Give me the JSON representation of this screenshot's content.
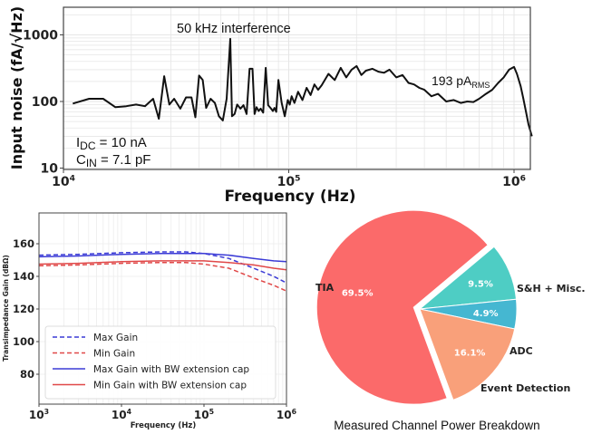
{
  "chart_data": [
    {
      "type": "line",
      "name": "input-noise",
      "xlabel": "Frequency (Hz)",
      "ylabel": "Input noise (fA/√Hz)",
      "xscale": "log",
      "yscale": "log",
      "xlim": [
        10000,
        1200000
      ],
      "ylim": [
        10,
        3000
      ],
      "xticks": [
        {
          "v": 10000,
          "base": "10",
          "exp": "4"
        },
        {
          "v": 100000,
          "base": "10",
          "exp": "5"
        },
        {
          "v": 1000000,
          "base": "10",
          "exp": "6"
        }
      ],
      "yticks": [
        {
          "v": 10,
          "label": "10"
        },
        {
          "v": 100,
          "label": "100"
        },
        {
          "v": 1000,
          "label": "1000"
        }
      ],
      "grid": true,
      "annotations": {
        "interference": "50 kHz interference",
        "rms_value": "193 pA",
        "rms_sub": "RMS",
        "idc_main": "I",
        "idc_sub": "DC",
        "idc_rest": " = 10 nA",
        "cin_main": "C",
        "cin_sub": "IN",
        "cin_rest": " = 7.1 pF"
      },
      "series": [
        {
          "name": "noise",
          "x": [
            11000,
            13000,
            15000,
            17000,
            19000,
            21000,
            23000,
            25000,
            26500,
            28000,
            29500,
            31000,
            33000,
            35000,
            37000,
            38500,
            40000,
            41500,
            43000,
            45000,
            47000,
            49000,
            51000,
            53000,
            55000,
            56000,
            57500,
            59000,
            61000,
            63000,
            65000,
            67000,
            69000,
            70500,
            72000,
            73500,
            75000,
            77000,
            79000,
            81000,
            83000,
            85000,
            86500,
            88000,
            90000,
            93000,
            96000,
            99000,
            101000,
            103000,
            106000,
            110000,
            115000,
            120000,
            125000,
            130000,
            135000,
            140000,
            150000,
            160000,
            170000,
            180000,
            190000,
            200000,
            210000,
            220000,
            235000,
            250000,
            265000,
            280000,
            300000,
            320000,
            340000,
            360000,
            380000,
            400000,
            430000,
            460000,
            500000,
            540000,
            580000,
            620000,
            660000,
            700000,
            750000,
            800000,
            850000,
            900000,
            950000,
            1000000,
            1030000,
            1070000,
            1100000,
            1130000,
            1160000,
            1200000
          ],
          "y": [
            93,
            110,
            110,
            82,
            85,
            90,
            85,
            110,
            55,
            240,
            90,
            110,
            78,
            115,
            115,
            58,
            245,
            210,
            80,
            110,
            95,
            60,
            52,
            110,
            870,
            60,
            65,
            90,
            78,
            88,
            65,
            310,
            310,
            65,
            82,
            72,
            78,
            68,
            320,
            88,
            80,
            72,
            80,
            70,
            210,
            95,
            60,
            105,
            90,
            120,
            95,
            140,
            105,
            160,
            125,
            180,
            150,
            175,
            260,
            210,
            320,
            230,
            300,
            340,
            250,
            290,
            310,
            280,
            270,
            300,
            230,
            250,
            190,
            180,
            160,
            150,
            120,
            130,
            100,
            105,
            95,
            100,
            98,
            110,
            130,
            150,
            190,
            230,
            300,
            330,
            260,
            170,
            110,
            70,
            45,
            30
          ]
        }
      ]
    },
    {
      "type": "line",
      "name": "transimpedance-gain",
      "xlabel": "Frequency (Hz)",
      "ylabel": "Transimpedance Gain (dBΩ)",
      "xscale": "log",
      "xlim": [
        1000,
        1000000
      ],
      "ylim": [
        62,
        178
      ],
      "xticks": [
        {
          "v": 1000,
          "base": "10",
          "exp": "3"
        },
        {
          "v": 10000,
          "base": "10",
          "exp": "4"
        },
        {
          "v": 100000,
          "base": "10",
          "exp": "5"
        },
        {
          "v": 1000000,
          "base": "10",
          "exp": "6"
        }
      ],
      "yticks": [
        80,
        100,
        120,
        140,
        160
      ],
      "grid": true,
      "legend_position": "lower-left",
      "series": [
        {
          "name": "Max Gain",
          "color": "#3b3bd6",
          "style": "dashed",
          "x": [
            1000,
            3000,
            10000,
            30000,
            60000,
            100000,
            200000,
            400000,
            700000,
            1000000
          ],
          "y": [
            153,
            153.5,
            154.5,
            155,
            155,
            154,
            151,
            145,
            140,
            136
          ]
        },
        {
          "name": "Min Gain",
          "color": "#e04848",
          "style": "dashed",
          "x": [
            1000,
            3000,
            10000,
            30000,
            60000,
            100000,
            200000,
            400000,
            700000,
            1000000
          ],
          "y": [
            146.5,
            147,
            148,
            148.5,
            148.5,
            147.5,
            145,
            139,
            134.5,
            131
          ]
        },
        {
          "name": "Max Gain with BW extension cap",
          "color": "#3b3bd6",
          "style": "solid",
          "x": [
            1000,
            3000,
            10000,
            30000,
            100000,
            200000,
            400000,
            700000,
            1000000
          ],
          "y": [
            152,
            152.5,
            153.5,
            154,
            154,
            153,
            151,
            149.5,
            149
          ]
        },
        {
          "name": "Min Gain with BW extension cap",
          "color": "#e04848",
          "style": "solid",
          "x": [
            1000,
            3000,
            10000,
            30000,
            100000,
            200000,
            400000,
            700000,
            1000000
          ],
          "y": [
            147.5,
            148,
            149,
            149.5,
            149.5,
            148.5,
            147,
            145,
            144
          ]
        }
      ]
    },
    {
      "type": "pie",
      "name": "power-breakdown",
      "title": "Measured Channel Power Breakdown",
      "slices": [
        {
          "label": "TIA",
          "value": 69.5,
          "pct": "69.5%",
          "color": "#fb6a6a",
          "explode": true
        },
        {
          "label": "Event Detection",
          "value": 9.5,
          "pct": "9.5%",
          "color": "#4ecdc4",
          "explode": false
        },
        {
          "label": "ADC",
          "value": 4.9,
          "pct": "4.9%",
          "color": "#45b7d1",
          "explode": false
        },
        {
          "label": "S&H + Misc.",
          "value": 16.1,
          "pct": "16.1%",
          "color": "#f9a07a",
          "explode": false
        }
      ]
    }
  ]
}
